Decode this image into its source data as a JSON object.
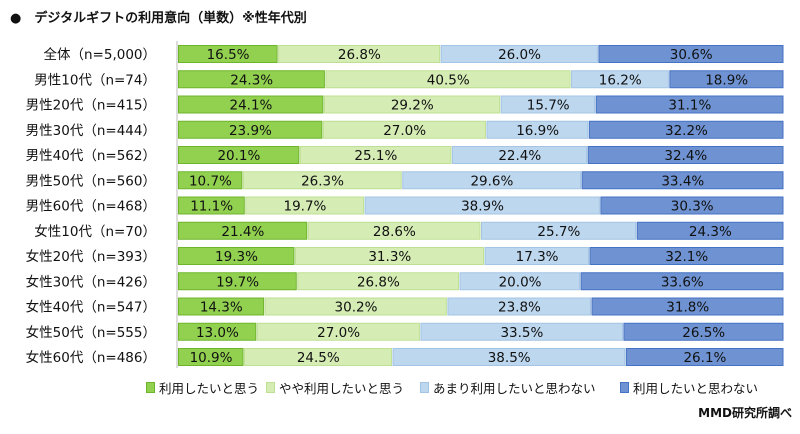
{
  "title": "●　デジタルギフトの利用意向（単数）※性年代別",
  "source": "MMD研究所調べ",
  "chart_data": {
    "type": "bar",
    "orientation": "horizontal",
    "stacked": "100%",
    "title": "デジタルギフトの利用意向（単数）※性年代別",
    "categories": [
      "全体（n=5,000）",
      "男性10代（n=74）",
      "男性20代（n=415）",
      "男性30代（n=444）",
      "男性40代（n=562）",
      "男性50代（n=560）",
      "男性60代（n=468）",
      "女性10代（n=70）",
      "女性20代（n=393）",
      "女性30代（n=426）",
      "女性40代（n=547）",
      "女性50代（n=555）",
      "女性60代（n=486）"
    ],
    "series": [
      {
        "name": "利用したいと思う",
        "color": "#92d050",
        "border": "#6fb52c",
        "values": [
          16.5,
          24.3,
          24.1,
          23.9,
          20.1,
          10.7,
          11.1,
          21.4,
          19.3,
          19.7,
          14.3,
          13.0,
          10.9
        ]
      },
      {
        "name": "やや利用したいと思う",
        "color": "#d5ecb4",
        "border": "#bfe092",
        "values": [
          26.8,
          40.5,
          29.2,
          27.0,
          25.1,
          26.3,
          19.7,
          28.6,
          31.3,
          26.8,
          30.2,
          27.0,
          24.5
        ]
      },
      {
        "name": "あまり利用したいと思わない",
        "color": "#bdd7ee",
        "border": "#a3c4e4",
        "values": [
          26.0,
          16.2,
          15.7,
          16.9,
          22.4,
          29.6,
          38.9,
          25.7,
          17.3,
          20.0,
          23.8,
          33.5,
          38.5
        ]
      },
      {
        "name": "利用したいと思わない",
        "color": "#6f93d2",
        "border": "#4472c4",
        "values": [
          30.6,
          18.9,
          31.1,
          32.2,
          32.4,
          33.4,
          30.3,
          24.3,
          32.1,
          33.6,
          31.8,
          26.5,
          26.1
        ]
      }
    ],
    "value_format": "%.1f%",
    "legend_position": "bottom",
    "xlim": [
      0,
      100
    ]
  }
}
